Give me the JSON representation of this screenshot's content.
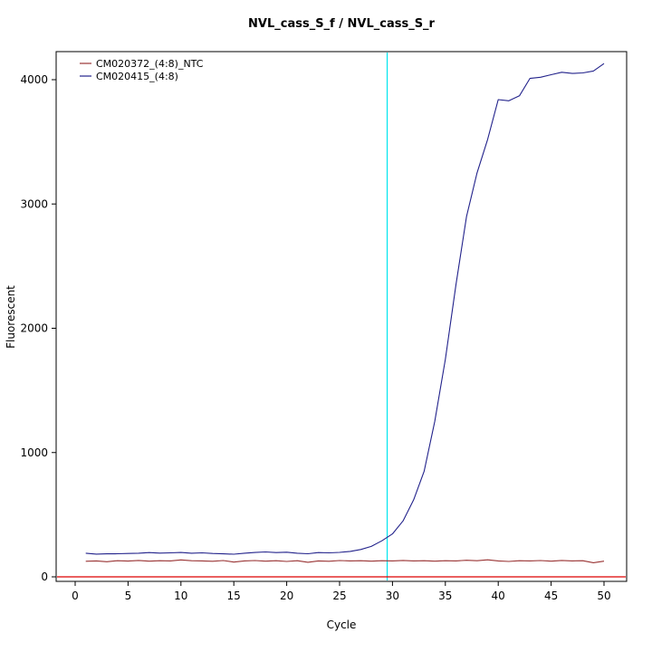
{
  "chart_data": {
    "type": "line",
    "title": "NVL_cass_S_f / NVL_cass_S_r",
    "xlabel": "Cycle",
    "ylabel": "Fluorescent",
    "xlim": [
      0,
      52
    ],
    "ylim": [
      -150,
      4300
    ],
    "xticks": [
      0,
      5,
      10,
      15,
      20,
      25,
      30,
      35,
      40,
      45,
      50
    ],
    "yticks": [
      0,
      1000,
      2000,
      3000,
      4000
    ],
    "grid": false,
    "legend_position": "top-left",
    "x": [
      1,
      2,
      3,
      4,
      5,
      6,
      7,
      8,
      9,
      10,
      11,
      12,
      13,
      14,
      15,
      16,
      17,
      18,
      19,
      20,
      21,
      22,
      23,
      24,
      25,
      26,
      27,
      28,
      29,
      30,
      31,
      32,
      33,
      34,
      35,
      36,
      37,
      38,
      39,
      40,
      41,
      42,
      43,
      44,
      45,
      46,
      47,
      48,
      49,
      50
    ],
    "series": [
      {
        "name": "CM020372_(4:8)_NTC",
        "color": "#993333",
        "values": [
          125,
          128,
          122,
          130,
          127,
          132,
          126,
          130,
          128,
          136,
          130,
          128,
          125,
          131,
          119,
          128,
          131,
          126,
          130,
          124,
          130,
          117,
          128,
          125,
          131,
          128,
          130,
          126,
          130,
          128,
          132,
          128,
          130,
          126,
          130,
          128,
          133,
          130,
          137,
          128,
          124,
          130,
          128,
          131,
          126,
          132,
          128,
          130,
          114,
          126
        ]
      },
      {
        "name": "CM020415_(4:8)",
        "color": "#22228B",
        "values": [
          190,
          183,
          185,
          186,
          188,
          190,
          195,
          191,
          193,
          196,
          190,
          193,
          188,
          185,
          182,
          190,
          196,
          200,
          195,
          198,
          190,
          186,
          195,
          193,
          197,
          205,
          220,
          245,
          290,
          345,
          450,
          620,
          850,
          1250,
          1750,
          2350,
          2900,
          3250,
          3520,
          3840,
          3830,
          3870,
          4010,
          4020,
          4040,
          4060,
          4050,
          4055,
          4070,
          4130
        ]
      }
    ],
    "threshold_line": {
      "value": 0,
      "color": "#DD0000",
      "orientation": "horizontal"
    },
    "ct_line": {
      "cycle": 29.5,
      "color": "#00E5EE",
      "orientation": "vertical"
    }
  }
}
